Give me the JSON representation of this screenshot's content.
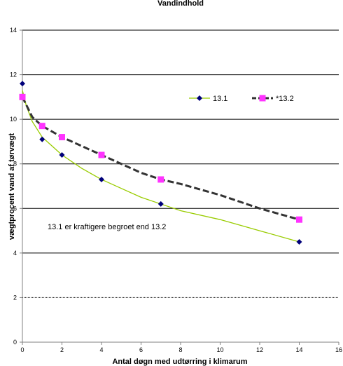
{
  "chart_data": {
    "type": "line",
    "title": "Vandindhold",
    "xlabel": "Antal døgn med udtørring i klimarum",
    "ylabel": "vægtprocent vand af tørvægt",
    "xlim": [
      0,
      16
    ],
    "ylim": [
      0,
      14
    ],
    "xticks": [
      0,
      2,
      4,
      6,
      8,
      10,
      12,
      14,
      16
    ],
    "yticks": [
      0,
      2,
      4,
      6,
      8,
      10,
      12,
      14
    ],
    "grid": "horizontal",
    "legend": "upper-right",
    "series": [
      {
        "name": "13.1",
        "color": "#00007a",
        "line_color": "#99cc00",
        "marker": "diamond",
        "x": [
          0,
          1,
          2,
          4,
          7,
          14
        ],
        "y": [
          11.6,
          9.1,
          8.4,
          7.3,
          6.2,
          4.5
        ],
        "trend_x": [
          0,
          0.2,
          0.5,
          1,
          1.5,
          2,
          3,
          4,
          5,
          6,
          7,
          8,
          10,
          12,
          14
        ],
        "trend_y": [
          11.3,
          10.6,
          9.9,
          9.2,
          8.8,
          8.4,
          7.8,
          7.3,
          6.9,
          6.5,
          6.2,
          5.9,
          5.5,
          5.0,
          4.5
        ]
      },
      {
        "name": "*13.2",
        "color": "#ff33ff",
        "line_color": "#333333",
        "marker": "square",
        "x": [
          0,
          1,
          2,
          4,
          7,
          14
        ],
        "y": [
          11.0,
          9.7,
          9.2,
          8.4,
          7.3,
          5.5
        ],
        "trend_x": [
          0,
          0.5,
          1,
          2,
          3,
          4,
          5,
          6,
          7,
          8,
          10,
          12,
          14
        ],
        "trend_y": [
          11.0,
          10.1,
          9.7,
          9.2,
          8.8,
          8.4,
          8.0,
          7.6,
          7.3,
          7.1,
          6.6,
          6.0,
          5.5
        ]
      }
    ],
    "annotation": "13.1 er kraftigere begroet end 13.2"
  }
}
